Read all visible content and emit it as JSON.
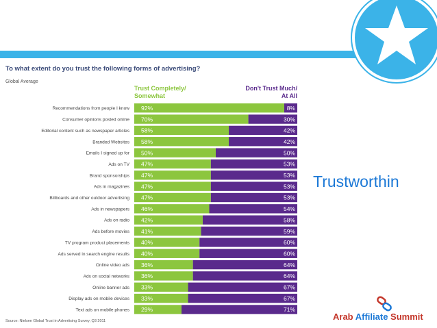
{
  "chart_data": {
    "type": "bar",
    "stacked": true,
    "orientation": "horizontal",
    "title": "To what extent do you trust the following forms of advertising?",
    "subtitle": "Global Average",
    "source": "Source: Nielsen Global Trust in Advertising Survey, Q3 2011",
    "series": [
      {
        "name": "Trust Completely/ Somewhat",
        "name_lines": [
          "Trust Completely/",
          "Somewhat"
        ],
        "color": "#8cc63e",
        "values": [
          92,
          70,
          58,
          58,
          50,
          47,
          47,
          47,
          47,
          46,
          42,
          41,
          40,
          40,
          36,
          36,
          33,
          33,
          29
        ]
      },
      {
        "name": "Don't Trust Much/ At All",
        "name_lines": [
          "Don't Trust Much/",
          "At All"
        ],
        "color": "#5a2a8c",
        "values": [
          8,
          30,
          42,
          42,
          50,
          53,
          53,
          53,
          53,
          54,
          58,
          59,
          60,
          60,
          64,
          64,
          67,
          67,
          71
        ]
      }
    ],
    "categories": [
      "Recommendations from people I know",
      "Consumer opinions posted online",
      "Editorial content such as newspaper articles",
      "Branded Websites",
      "Emails I signed up for",
      "Ads on TV",
      "Brand sponsorships",
      "Ads in magazines",
      "Billboards and other outdoor advertising",
      "Ads in newspapers",
      "Ads on radio",
      "Ads before movies",
      "TV program product placements",
      "Ads served in search engine results",
      "Online video ads",
      "Ads on social networks",
      "Online banner ads",
      "Display ads on mobile devices",
      "Text ads on mobile phones"
    ],
    "xlim": [
      0,
      100
    ]
  },
  "slide": {
    "headline": "Trustworthin",
    "brand_part1": "Arab ",
    "brand_part2": "Affiliate",
    "brand_part3": " Summit",
    "badge_icon": "star-icon",
    "colors": {
      "accent_blue": "#3bb3e8",
      "headline_blue": "#1b78d6",
      "brand_red": "#c4372b",
      "brand_blue": "#1b78d6"
    }
  }
}
